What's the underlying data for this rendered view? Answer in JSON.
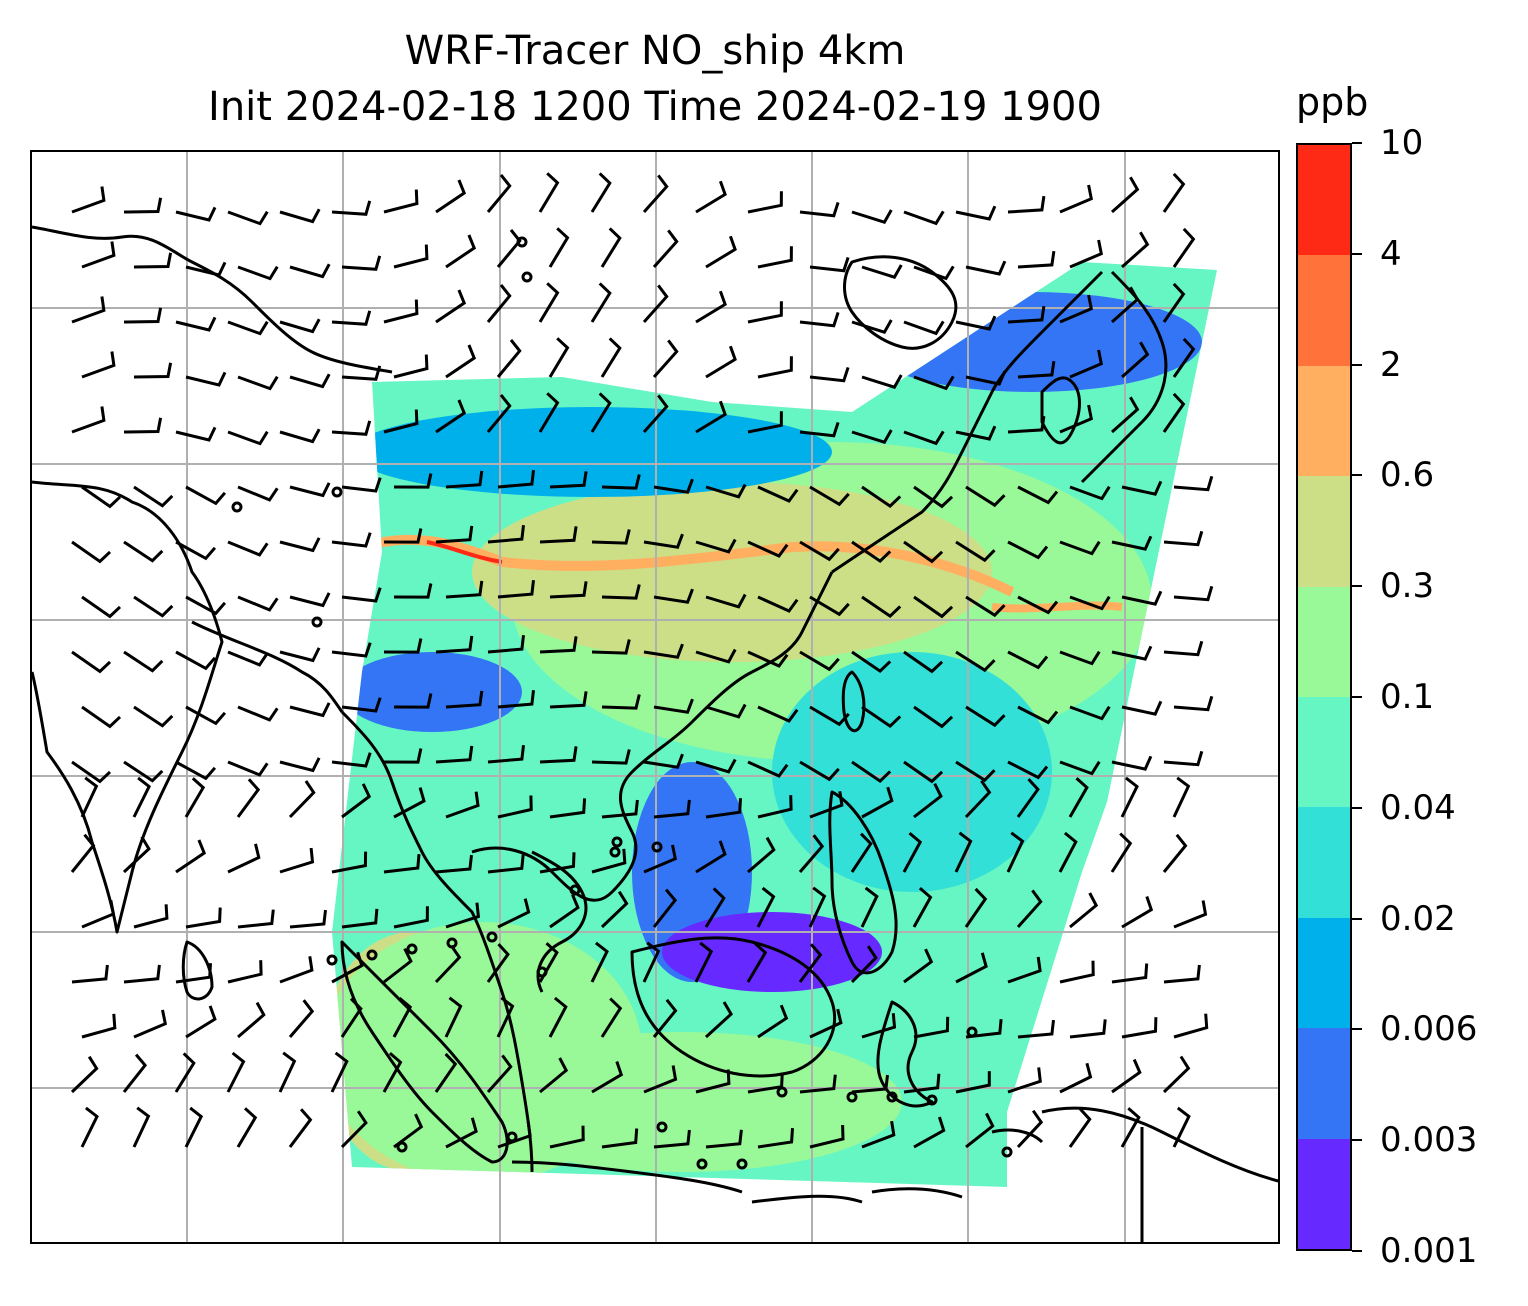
{
  "title": {
    "line1": "WRF-Tracer NO_ship 4km",
    "line2": "Init 2024-02-18 1200 Time 2024-02-19 1900"
  },
  "colorbar": {
    "unit": "ppb",
    "ticks": [
      "0.001",
      "0.003",
      "0.006",
      "0.02",
      "0.04",
      "0.1",
      "0.3",
      "0.6",
      "2",
      "4",
      "10"
    ],
    "colors": [
      "#6629ff",
      "#3375f5",
      "#00b0eb",
      "#33e0d8",
      "#66f6c4",
      "#99f898",
      "#ccdf86",
      "#ffaf5f",
      "#ff7239",
      "#ff2a15"
    ]
  },
  "map": {
    "gridlines": true,
    "coastline_color": "#000000",
    "wind_barb_color": "#000000",
    "grid_color": "#b0b0b0"
  }
}
